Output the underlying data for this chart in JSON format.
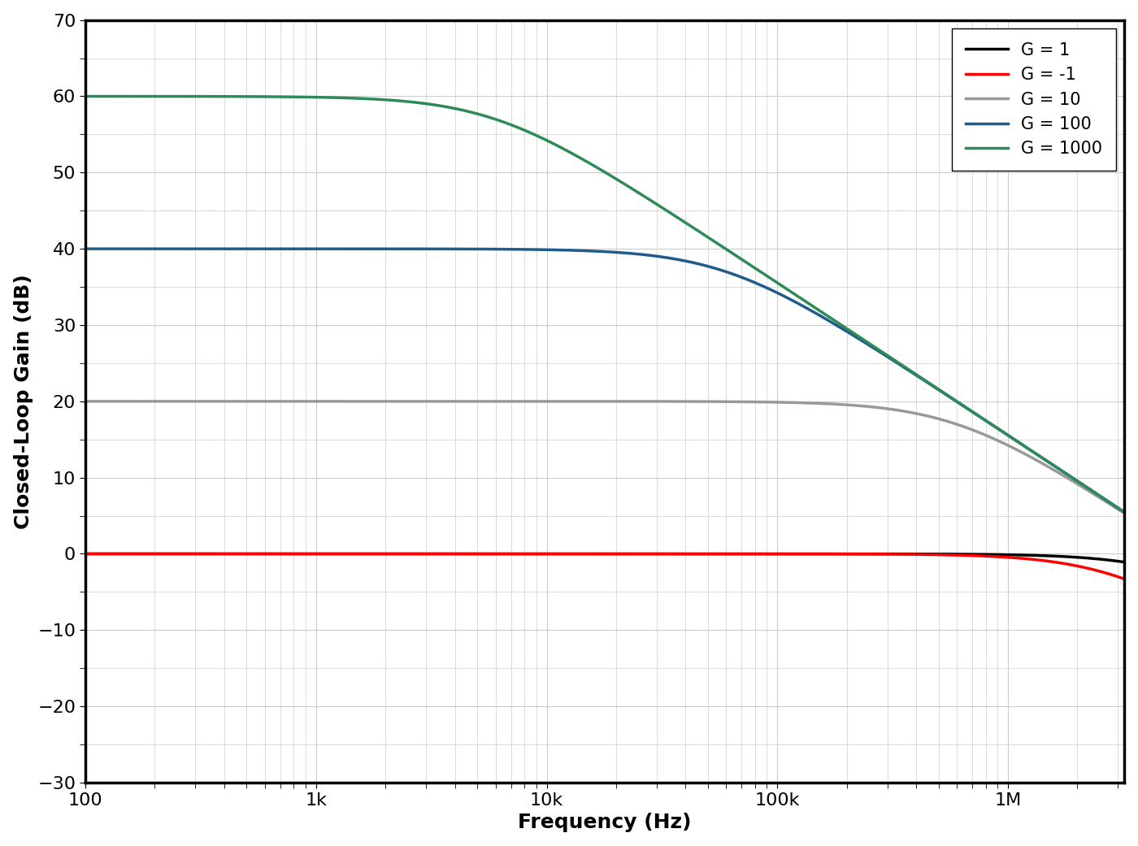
{
  "xlabel": "Frequency (Hz)",
  "ylabel": "Closed-Loop Gain (dB)",
  "xlim_log": [
    100,
    3200000
  ],
  "ylim": [
    -30,
    70
  ],
  "yticks": [
    -30,
    -20,
    -10,
    0,
    10,
    20,
    30,
    40,
    50,
    60,
    70
  ],
  "xticks_log": [
    100,
    1000,
    10000,
    100000,
    1000000
  ],
  "xtick_labels": [
    "100",
    "1k",
    "10k",
    "100k",
    "1M"
  ],
  "background_color": "#ffffff",
  "grid_color": "#cccccc",
  "gbw": 6000000,
  "series": [
    {
      "label": "G = 1",
      "color": "#000000",
      "gain_linear": 1,
      "noise_gain": 1,
      "lw": 2.5
    },
    {
      "label": "G = -1",
      "color": "#ff0000",
      "gain_linear": 1,
      "noise_gain": 2,
      "lw": 2.5
    },
    {
      "label": "G = 10",
      "color": "#999999",
      "gain_linear": 10,
      "noise_gain": 10,
      "lw": 2.5
    },
    {
      "label": "G = 100",
      "color": "#1f5c8b",
      "gain_linear": 100,
      "noise_gain": 100,
      "lw": 2.5
    },
    {
      "label": "G = 1000",
      "color": "#2e8b57",
      "gain_linear": 1000,
      "noise_gain": 1000,
      "lw": 2.5
    }
  ],
  "legend_loc": "upper right",
  "legend_fontsize": 15,
  "axis_label_fontsize": 18,
  "tick_labelsize": 16
}
